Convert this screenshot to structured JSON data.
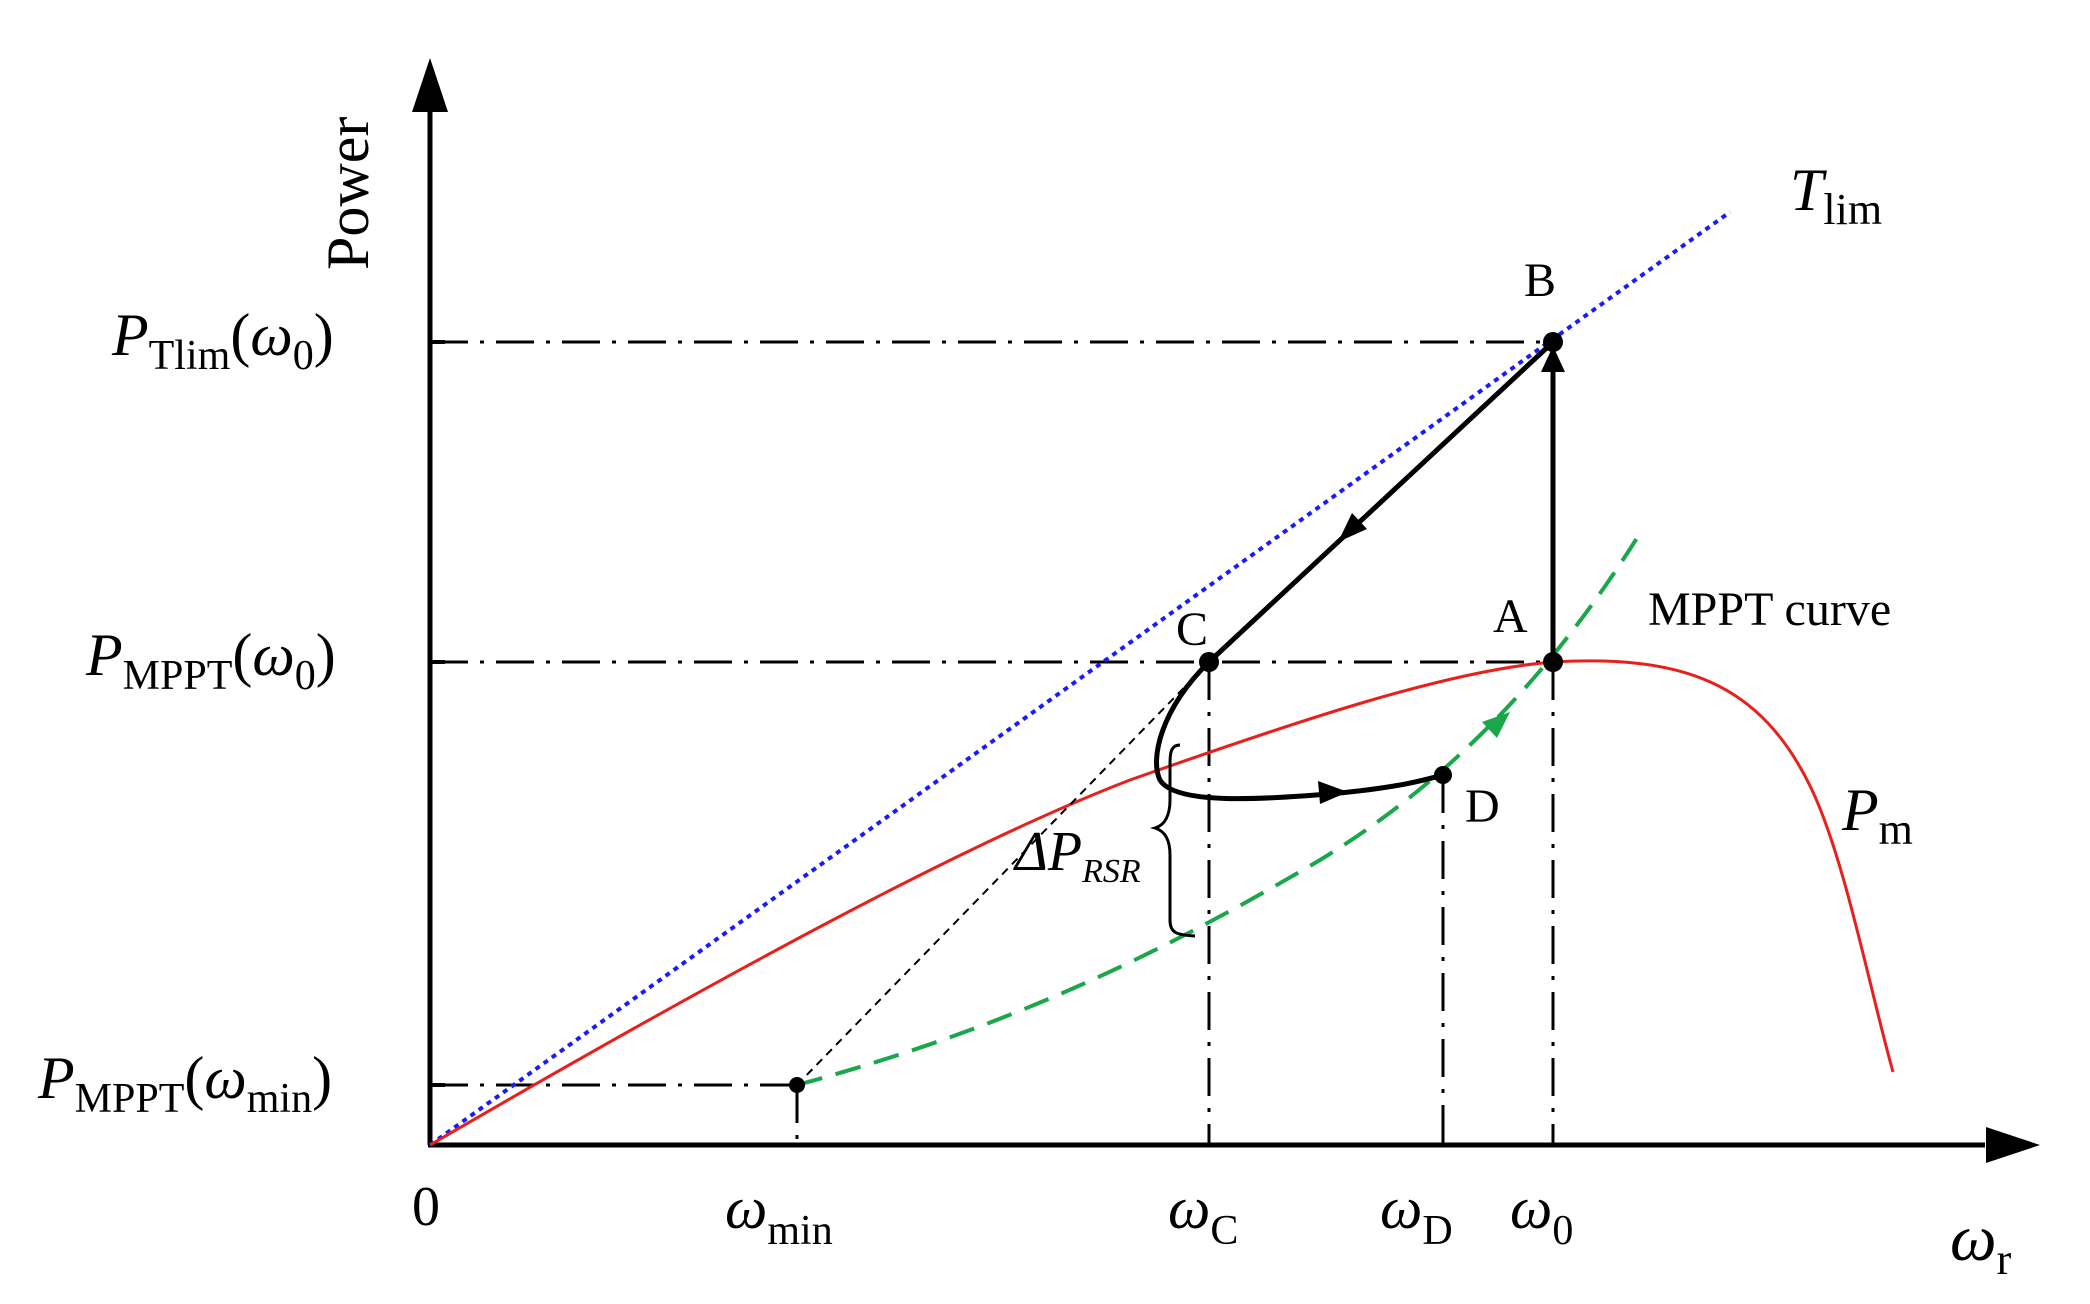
{
  "axes": {
    "y_title": "Power",
    "x_title": {
      "main": "ω",
      "sub": "r"
    },
    "origin_label": "0"
  },
  "y_ticks": [
    {
      "main": "P",
      "sub": "Tlim",
      "arg_main": "ω",
      "arg_sub": "0"
    },
    {
      "main": "P",
      "sub": "MPPT",
      "arg_main": "ω",
      "arg_sub": "0"
    },
    {
      "main": "P",
      "sub": "MPPT",
      "arg_main": "ω",
      "arg_sub": "min"
    }
  ],
  "x_ticks": [
    {
      "main": "ω",
      "sub": "min"
    },
    {
      "main": "ω",
      "sub": "C"
    },
    {
      "main": "ω",
      "sub": "D"
    },
    {
      "main": "ω",
      "sub": "0"
    }
  ],
  "points": {
    "A": "A",
    "B": "B",
    "C": "C",
    "D": "D"
  },
  "curves": {
    "tlim": {
      "main": "T",
      "sub": "lim",
      "color": "#1a1aff"
    },
    "mppt": {
      "label": "MPPT curve",
      "color": "#1aa64a"
    },
    "pm": {
      "main": "P",
      "sub": "m",
      "color": "#e8201c"
    }
  },
  "delta": {
    "main": "ΔP",
    "sub": "RSR"
  }
}
